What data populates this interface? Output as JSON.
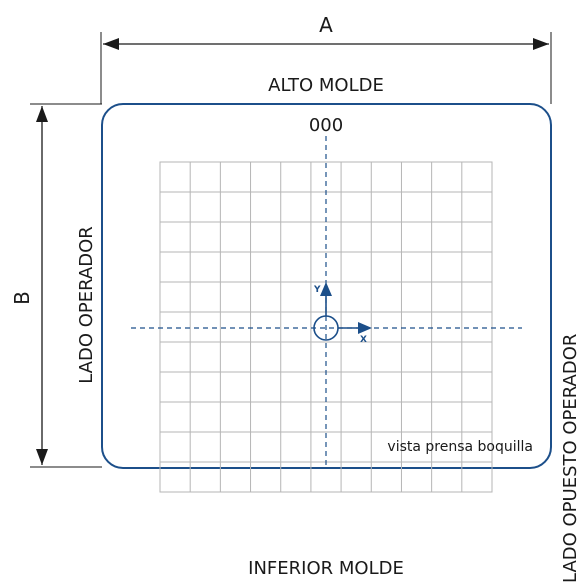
{
  "labels": {
    "dim_a": "A",
    "dim_b": "B",
    "top": "ALTO MOLDE",
    "bottom": "INFERIOR MOLDE",
    "left": "LADO OPERADOR",
    "right": "LADO OPUESTO OPERADOR",
    "origin": "000",
    "axis_x": "X",
    "axis_y": "Y",
    "view_note": "vista prensa boquilla"
  },
  "grid": {
    "columns": 11,
    "rows": 11
  },
  "colors": {
    "outline": "#1c4f8a",
    "grid_line": "#b5b5b5",
    "dimension_line": "#1a1a1a"
  }
}
